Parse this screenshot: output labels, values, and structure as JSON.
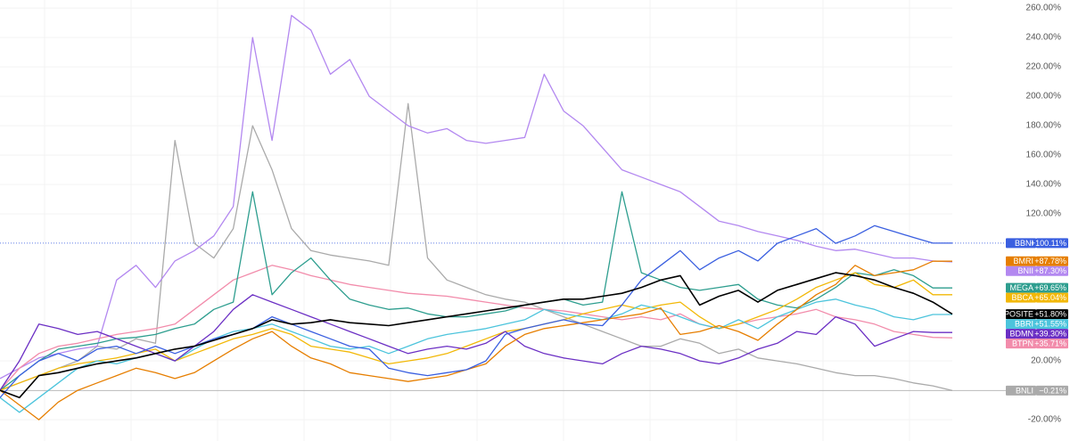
{
  "chart_data": {
    "type": "line",
    "grid": true,
    "ylim": [
      -34.5,
      265.5
    ],
    "yticks": [
      {
        "value": -20,
        "label": "-20.00%"
      },
      {
        "value": 20,
        "label": "20.00%"
      },
      {
        "value": 120,
        "label": "120.00%"
      },
      {
        "value": 140,
        "label": "140.00%"
      },
      {
        "value": 160,
        "label": "160.00%"
      },
      {
        "value": 180,
        "label": "180.00%"
      },
      {
        "value": 200,
        "label": "200.00%"
      },
      {
        "value": 220,
        "label": "220.00%"
      },
      {
        "value": 240,
        "label": "240.00%"
      },
      {
        "value": 260,
        "label": "260.00%"
      }
    ],
    "series": [
      {
        "name": "BNLI",
        "color": "#aaaaaa",
        "value_label": "−0.21%",
        "price_line": "solid",
        "values": [
          0,
          5,
          10,
          15,
          20,
          30,
          28,
          35,
          32,
          170,
          100,
          90,
          110,
          180,
          150,
          110,
          95,
          92,
          90,
          88,
          85,
          195,
          90,
          75,
          70,
          65,
          62,
          60,
          55,
          50,
          45,
          40,
          35,
          30,
          30,
          35,
          32,
          25,
          28,
          22,
          20,
          18,
          15,
          12,
          10,
          10,
          8,
          5,
          3,
          -0.21
        ]
      },
      {
        "name": "BNII",
        "color": "#b388f0",
        "value_label": "+87.30%",
        "values": [
          8,
          15,
          22,
          25,
          28,
          30,
          75,
          85,
          70,
          88,
          95,
          105,
          125,
          240,
          170,
          255,
          245,
          215,
          225,
          200,
          190,
          180,
          175,
          178,
          170,
          168,
          170,
          172,
          215,
          190,
          180,
          165,
          150,
          145,
          140,
          135,
          125,
          115,
          112,
          108,
          105,
          102,
          98,
          95,
          96,
          93,
          90,
          90,
          88,
          87.3
        ]
      },
      {
        "name": "BTPN",
        "color": "#f28cab",
        "value_label": "+35.71%",
        "values": [
          0,
          15,
          25,
          30,
          32,
          35,
          38,
          40,
          42,
          45,
          55,
          65,
          75,
          80,
          85,
          82,
          78,
          75,
          72,
          70,
          68,
          66,
          65,
          64,
          62,
          60,
          58,
          56,
          55,
          54,
          52,
          50,
          48,
          50,
          48,
          52,
          45,
          42,
          45,
          48,
          50,
          52,
          55,
          50,
          48,
          45,
          40,
          38,
          36,
          35.71
        ]
      },
      {
        "name": "MEGA",
        "color": "#2e9e8f",
        "value_label": "+69.65%",
        "values": [
          0,
          10,
          20,
          28,
          30,
          32,
          35,
          36,
          38,
          42,
          45,
          55,
          60,
          135,
          65,
          80,
          90,
          75,
          62,
          58,
          55,
          56,
          52,
          50,
          50,
          52,
          54,
          58,
          60,
          62,
          58,
          60,
          135,
          80,
          75,
          70,
          68,
          70,
          72,
          62,
          58,
          56,
          62,
          70,
          80,
          78,
          82,
          78,
          69.65,
          69.65
        ]
      },
      {
        "name": "BBCA",
        "color": "#f2b807",
        "value_label": "+65.04%",
        "values": [
          0,
          5,
          10,
          15,
          18,
          20,
          22,
          25,
          28,
          20,
          25,
          30,
          35,
          38,
          42,
          38,
          30,
          28,
          26,
          22,
          18,
          20,
          22,
          25,
          30,
          35,
          40,
          42,
          45,
          48,
          52,
          55,
          58,
          55,
          58,
          60,
          50,
          42,
          45,
          50,
          55,
          62,
          70,
          75,
          80,
          72,
          70,
          75,
          65.04,
          65.04
        ]
      },
      {
        "name": "BBRI",
        "color": "#4cc4dc",
        "value_label": "+51.55%",
        "values": [
          -5,
          -15,
          -5,
          5,
          15,
          20,
          18,
          22,
          25,
          20,
          28,
          35,
          40,
          42,
          45,
          40,
          35,
          30,
          28,
          30,
          25,
          30,
          35,
          38,
          40,
          42,
          45,
          48,
          55,
          52,
          50,
          48,
          52,
          58,
          55,
          50,
          45,
          42,
          48,
          42,
          50,
          55,
          60,
          62,
          58,
          55,
          50,
          48,
          51.55,
          51.55
        ]
      },
      {
        "name": "BDMN",
        "color": "#6b2fc4",
        "value_label": "+39.30%",
        "values": [
          0,
          20,
          45,
          42,
          38,
          40,
          35,
          30,
          25,
          20,
          30,
          40,
          55,
          65,
          60,
          55,
          50,
          45,
          40,
          35,
          30,
          25,
          28,
          30,
          28,
          32,
          40,
          30,
          25,
          22,
          20,
          18,
          25,
          30,
          28,
          25,
          20,
          18,
          22,
          28,
          32,
          40,
          38,
          50,
          45,
          30,
          35,
          40,
          39.3,
          39.3
        ]
      },
      {
        "name": "BMRI",
        "color": "#e67e00",
        "value_label": "+87.78%",
        "values": [
          0,
          -10,
          -20,
          -8,
          0,
          5,
          10,
          15,
          12,
          8,
          12,
          20,
          28,
          35,
          40,
          30,
          22,
          18,
          12,
          10,
          8,
          6,
          8,
          10,
          14,
          18,
          30,
          38,
          42,
          44,
          46,
          48,
          50,
          52,
          56,
          38,
          40,
          44,
          40,
          34,
          45,
          55,
          65,
          72,
          85,
          78,
          80,
          82,
          87.78,
          87.78
        ]
      },
      {
        "name": "BBNI",
        "color": "#3a5fe0",
        "value_label": "+100.11%",
        "price_line": "dotted",
        "values": [
          -5,
          10,
          20,
          25,
          20,
          28,
          30,
          25,
          30,
          25,
          30,
          35,
          38,
          42,
          50,
          45,
          40,
          35,
          30,
          28,
          15,
          12,
          10,
          12,
          14,
          20,
          38,
          42,
          45,
          48,
          45,
          44,
          58,
          75,
          85,
          95,
          82,
          90,
          95,
          88,
          100,
          105,
          110,
          100,
          105,
          112,
          108,
          104,
          100.11,
          100.11
        ]
      },
      {
        "name": "COMPOSITE",
        "color": "#000000",
        "value_label": "+51.80%",
        "values": [
          0,
          -5,
          10,
          12,
          15,
          18,
          20,
          22,
          25,
          28,
          30,
          34,
          38,
          42,
          48,
          45,
          46,
          48,
          46,
          45,
          44,
          46,
          48,
          50,
          52,
          54,
          56,
          58,
          60,
          62,
          62,
          64,
          66,
          70,
          75,
          78,
          58,
          64,
          68,
          60,
          68,
          72,
          76,
          80,
          78,
          75,
          70,
          66,
          60,
          51.8
        ]
      }
    ]
  }
}
